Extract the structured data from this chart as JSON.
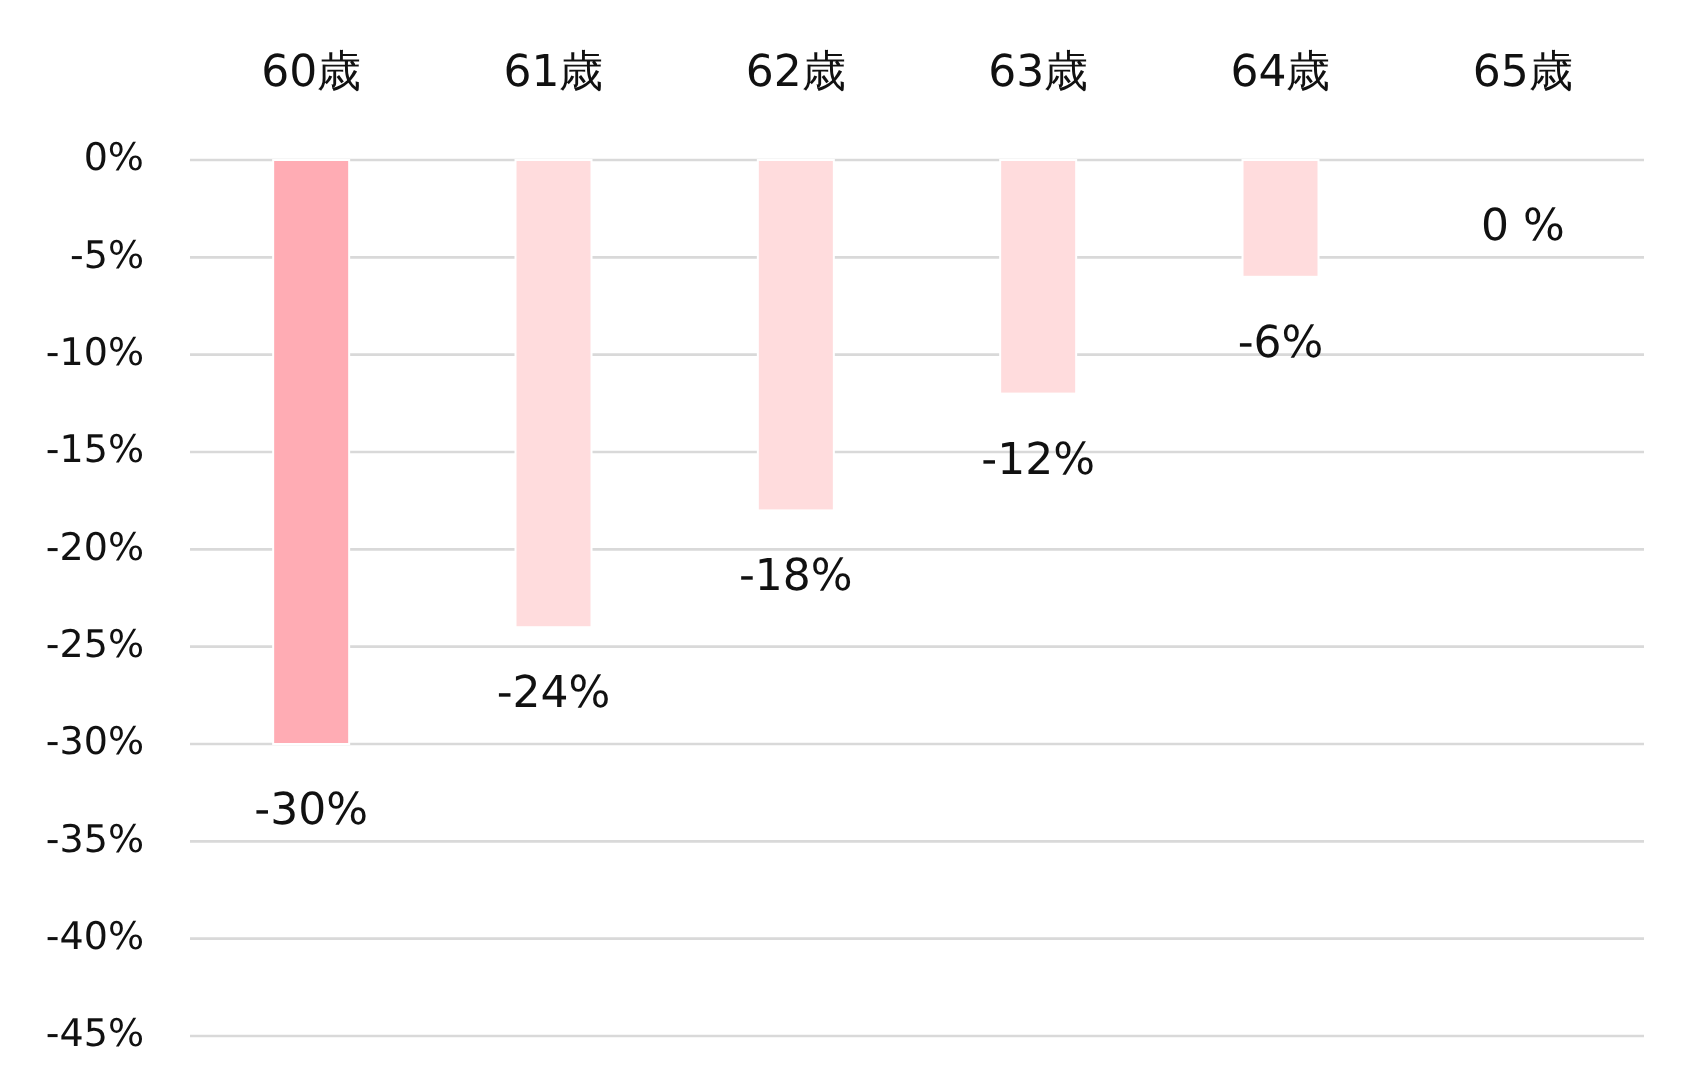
{
  "chart_data": {
    "type": "bar",
    "categories": [
      "60歳",
      "61歳",
      "62歳",
      "63歳",
      "64歳",
      "65歳"
    ],
    "values": [
      -30,
      -24,
      -18,
      -12,
      -6,
      0
    ],
    "colors": [
      "#ffacb4",
      "#ffdcdd",
      "#ffdcdd",
      "#ffdcdd",
      "#ffdcdd",
      "#ffdcdd"
    ],
    "value_labels": [
      "-30%",
      "-24%",
      "-18%",
      "-12%",
      "-6%",
      "0 %"
    ],
    "ylim": [
      -45,
      0
    ],
    "yticks": [
      {
        "value": 0,
        "label": "0%"
      },
      {
        "value": -5,
        "label": "-5%"
      },
      {
        "value": -10,
        "label": "-10%"
      },
      {
        "value": -15,
        "label": "-15%"
      },
      {
        "value": -20,
        "label": "-20%"
      },
      {
        "value": -25,
        "label": "-25%"
      },
      {
        "value": -30,
        "label": "-30%"
      },
      {
        "value": -35,
        "label": "-35%"
      },
      {
        "value": -40,
        "label": "-40%"
      },
      {
        "value": -45,
        "label": "-45%"
      }
    ],
    "grid": "y"
  }
}
